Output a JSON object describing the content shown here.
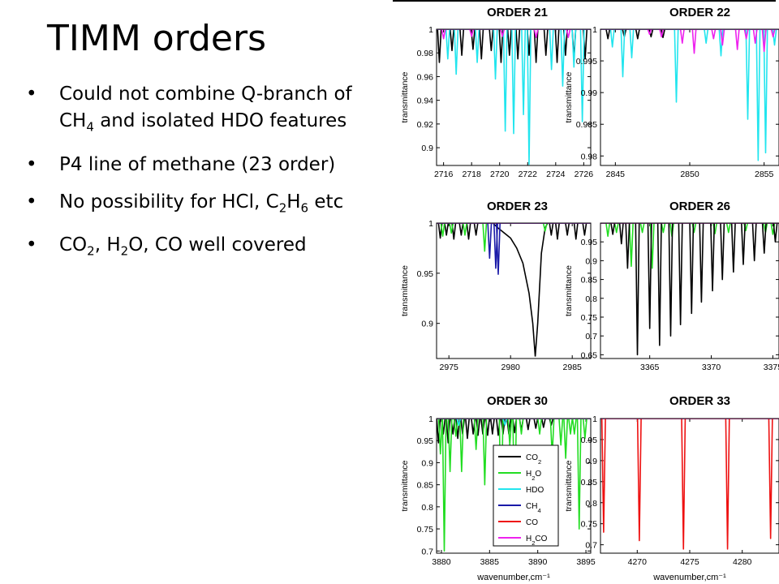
{
  "slide": {
    "title": "TIMM orders",
    "bullets": [
      [
        {
          "t": "Could not combine Q-branch of CH"
        },
        {
          "t": "4",
          "sub": true
        },
        {
          "t": " and isolated HDO features"
        }
      ],
      [
        {
          "t": "P4 line of methane (23 order)"
        }
      ],
      [
        {
          "t": "No possibility for HCl, C"
        },
        {
          "t": "2",
          "sub": true
        },
        {
          "t": "H"
        },
        {
          "t": "6",
          "sub": true
        },
        {
          "t": " etc"
        }
      ],
      [
        {
          "t": "CO"
        },
        {
          "t": "2",
          "sub": true
        },
        {
          "t": ", H"
        },
        {
          "t": "2",
          "sub": true
        },
        {
          "t": "O, CO well covered"
        }
      ]
    ]
  },
  "colors": {
    "CO2": "#000000",
    "H2O": "#22dd22",
    "HDO": "#22e5ee",
    "CH4": "#1a1aa8",
    "CO": "#ee1111",
    "H2CO": "#ee22ee"
  },
  "legend": [
    {
      "key": "CO2",
      "base": "CO",
      "sub": "2",
      "tail": ""
    },
    {
      "key": "H2O",
      "base": "H",
      "sub": "2",
      "tail": "O"
    },
    {
      "key": "HDO",
      "base": "HDO",
      "sub": "",
      "tail": ""
    },
    {
      "key": "CH4",
      "base": "CH",
      "sub": "4",
      "tail": ""
    },
    {
      "key": "CO",
      "base": "CO",
      "sub": "",
      "tail": ""
    },
    {
      "key": "H2CO",
      "base": "H",
      "sub": "2",
      "tail": "CO"
    }
  ],
  "chart_data": [
    {
      "type": "line",
      "title": "ORDER 21",
      "ylabel": "transmittance",
      "xlabel": "",
      "xlim": [
        2715.5,
        2726.5
      ],
      "ylim": [
        0.885,
        1.0
      ],
      "xticks": [
        2716,
        2718,
        2720,
        2722,
        2724,
        2726
      ],
      "yticks": [
        0.9,
        0.92,
        0.94,
        0.96,
        0.98,
        1
      ],
      "series": [
        {
          "key": "CO2",
          "lines": [
            [
              2715.7,
              0.972
            ],
            [
              2716.6,
              0.982
            ],
            [
              2717.3,
              0.978
            ],
            [
              2718.1,
              0.983
            ],
            [
              2718.7,
              0.975
            ],
            [
              2719.4,
              0.982
            ],
            [
              2720.1,
              0.972
            ],
            [
              2720.7,
              0.978
            ],
            [
              2721.3,
              0.975
            ],
            [
              2722.1,
              0.978
            ],
            [
              2722.6,
              0.972
            ],
            [
              2723.3,
              0.978
            ],
            [
              2724.1,
              0.972
            ],
            [
              2724.7,
              0.978
            ],
            [
              2725.3,
              0.975
            ],
            [
              2726.1,
              0.975
            ]
          ]
        },
        {
          "key": "HDO",
          "lines": [
            [
              2716.3,
              0.975
            ],
            [
              2716.9,
              0.962
            ],
            [
              2718.4,
              0.972
            ],
            [
              2719.7,
              0.958
            ],
            [
              2720.4,
              0.914
            ],
            [
              2721.0,
              0.912
            ],
            [
              2721.7,
              0.928
            ],
            [
              2722.1,
              0.886
            ],
            [
              2723.7,
              0.966
            ],
            [
              2724.5,
              0.952
            ],
            [
              2725.3,
              0.968
            ],
            [
              2725.9,
              0.922
            ]
          ]
        },
        {
          "key": "H2CO",
          "lines": [
            [
              2716.0,
              0.992
            ],
            [
              2718.0,
              0.994
            ],
            [
              2720.2,
              0.994
            ],
            [
              2722.6,
              0.993
            ],
            [
              2724.9,
              0.993
            ]
          ]
        }
      ]
    },
    {
      "type": "line",
      "title": "ORDER 22",
      "ylabel": "transmittance",
      "xlabel": "",
      "xlim": [
        2844.0,
        2856.0
      ],
      "ylim": [
        0.9785,
        1.0
      ],
      "xticks": [
        2845,
        2850,
        2855
      ],
      "yticks": [
        0.98,
        0.985,
        0.99,
        0.995,
        1
      ],
      "series": [
        {
          "key": "CO2",
          "lines": [
            [
              2844.5,
              0.9985
            ],
            [
              2845.6,
              0.9988
            ],
            [
              2846.5,
              0.9985
            ],
            [
              2847.4,
              0.9988
            ],
            [
              2848.2,
              0.9987
            ]
          ]
        },
        {
          "key": "HDO",
          "lines": [
            [
              2844.8,
              0.9972
            ],
            [
              2845.5,
              0.9925
            ],
            [
              2846.1,
              0.9955
            ],
            [
              2849.1,
              0.9885
            ],
            [
              2851.1,
              0.9978
            ],
            [
              2852.1,
              0.9958
            ],
            [
              2853.9,
              0.9858
            ],
            [
              2854.6,
              0.9793
            ],
            [
              2855.1,
              0.9805
            ],
            [
              2855.7,
              0.9975
            ]
          ]
        },
        {
          "key": "H2CO",
          "lines": [
            [
              2847.3,
              0.9992
            ],
            [
              2848.1,
              0.9988
            ],
            [
              2849.5,
              0.9978
            ],
            [
              2850.3,
              0.9962
            ],
            [
              2851.6,
              0.9985
            ],
            [
              2852.2,
              0.9975
            ],
            [
              2853.2,
              0.9968
            ],
            [
              2853.8,
              0.9985
            ],
            [
              2854.4,
              0.9978
            ],
            [
              2855.0,
              0.9965
            ],
            [
              2855.6,
              0.9988
            ]
          ]
        }
      ]
    },
    {
      "type": "line",
      "title": "ORDER 23",
      "ylabel": "transmittance",
      "xlabel": "",
      "xlim": [
        2974.0,
        2986.5
      ],
      "ylim": [
        0.865,
        1.0
      ],
      "xticks": [
        2975,
        2980,
        2985
      ],
      "yticks": [
        0.9,
        0.95,
        1
      ],
      "series": [
        {
          "key": "CO2",
          "lines": [
            [
              2974.3,
              0.985
            ],
            [
              2974.8,
              0.988
            ],
            [
              2975.4,
              0.984
            ],
            [
              2976.0,
              0.988
            ],
            [
              2976.6,
              0.984
            ],
            [
              2977.2,
              0.988
            ],
            [
              2983.3,
              0.988
            ],
            [
              2983.8,
              0.984
            ],
            [
              2984.6,
              0.988
            ],
            [
              2985.3,
              0.984
            ],
            [
              2986.0,
              0.988
            ]
          ],
          "curve": [
            [
              2978.6,
              0.9995
            ],
            [
              2979.0,
              0.995
            ],
            [
              2979.5,
              0.99
            ],
            [
              2980.0,
              0.985
            ],
            [
              2980.5,
              0.975
            ],
            [
              2981.0,
              0.96
            ],
            [
              2981.5,
              0.93
            ],
            [
              2981.8,
              0.9
            ],
            [
              2982.0,
              0.867
            ],
            [
              2982.2,
              0.9
            ],
            [
              2982.5,
              0.97
            ],
            [
              2982.8,
              0.995
            ],
            [
              2983.0,
              1.0
            ]
          ]
        },
        {
          "key": "H2O",
          "lines": [
            [
              2974.5,
              0.987
            ],
            [
              2975.2,
              0.99
            ],
            [
              2976.3,
              0.988
            ],
            [
              2977.9,
              0.972
            ],
            [
              2982.8,
              0.992
            ]
          ]
        },
        {
          "key": "CH4",
          "lines": [
            [
              2978.3,
              0.965
            ],
            [
              2978.8,
              0.955
            ],
            [
              2979.0,
              0.949
            ]
          ]
        },
        {
          "key": "H2CO",
          "lines": []
        }
      ]
    },
    {
      "type": "line",
      "title": "ORDER 26",
      "ylabel": "transmittance",
      "xlabel": "",
      "xlim": [
        3361.0,
        3375.5
      ],
      "ylim": [
        0.64,
        1.0
      ],
      "xticks": [
        3365,
        3370,
        3375
      ],
      "yticks": [
        0.65,
        0.7,
        0.75,
        0.8,
        0.85,
        0.9,
        0.95
      ],
      "series": [
        {
          "key": "H2O",
          "lines": [
            [
              3361.6,
              0.965
            ],
            [
              3362.3,
              0.975
            ],
            [
              3363.5,
              0.885
            ],
            [
              3364.4,
              0.975
            ],
            [
              3365.2,
              0.88
            ],
            [
              3366.1,
              0.975
            ],
            [
              3366.8,
              0.965
            ],
            [
              3368.6,
              0.975
            ],
            [
              3370.3,
              0.972
            ],
            [
              3371.4,
              0.975
            ],
            [
              3372.8,
              0.98
            ],
            [
              3374.4,
              0.975
            ],
            [
              3375.0,
              0.97
            ]
          ]
        },
        {
          "key": "CO2",
          "lines": [
            [
              3362.0,
              0.97
            ],
            [
              3362.7,
              0.945
            ],
            [
              3363.2,
              0.88
            ],
            [
              3364.0,
              0.65
            ],
            [
              3365.0,
              0.72
            ],
            [
              3365.8,
              0.675
            ],
            [
              3366.7,
              0.7
            ],
            [
              3367.5,
              0.73
            ],
            [
              3368.4,
              0.76
            ],
            [
              3369.2,
              0.79
            ],
            [
              3370.1,
              0.82
            ],
            [
              3370.9,
              0.85
            ],
            [
              3371.8,
              0.87
            ],
            [
              3372.6,
              0.89
            ],
            [
              3373.5,
              0.9
            ],
            [
              3374.3,
              0.92
            ],
            [
              3375.2,
              0.95
            ]
          ]
        },
        {
          "key": "H2CO",
          "lines": []
        }
      ]
    },
    {
      "type": "line",
      "title": "ORDER 30",
      "ylabel": "transmittance",
      "xlabel": "wavenumber,cm⁻¹",
      "xlim": [
        3879.5,
        3895.5
      ],
      "ylim": [
        0.695,
        1.0
      ],
      "xticks": [
        3880,
        3885,
        3890,
        3895
      ],
      "yticks": [
        0.7,
        0.75,
        0.8,
        0.85,
        0.9,
        0.95,
        1
      ],
      "series": [
        {
          "key": "CO2",
          "lines": [
            [
              3879.7,
              0.945
            ],
            [
              3880.2,
              0.965
            ],
            [
              3880.7,
              0.945
            ],
            [
              3881.2,
              0.965
            ],
            [
              3881.7,
              0.955
            ],
            [
              3882.2,
              0.965
            ],
            [
              3882.7,
              0.955
            ],
            [
              3883.3,
              0.965
            ],
            [
              3883.8,
              0.962
            ],
            [
              3884.3,
              0.965
            ],
            [
              3884.8,
              0.962
            ],
            [
              3885.3,
              0.965
            ],
            [
              3885.9,
              0.962
            ],
            [
              3886.4,
              0.965
            ],
            [
              3887.0,
              0.965
            ],
            [
              3887.6,
              0.968
            ],
            [
              3888.3,
              0.972
            ],
            [
              3889.0,
              0.975
            ],
            [
              3889.8,
              0.978
            ],
            [
              3890.6,
              0.98
            ],
            [
              3891.4,
              0.985
            ]
          ]
        },
        {
          "key": "H2O",
          "lines": [
            [
              3879.9,
              0.92
            ],
            [
              3880.3,
              0.7
            ],
            [
              3880.9,
              0.88
            ],
            [
              3881.5,
              0.96
            ],
            [
              3882.1,
              0.88
            ],
            [
              3883.6,
              0.93
            ],
            [
              3884.5,
              0.85
            ],
            [
              3886.2,
              0.74
            ],
            [
              3887.1,
              0.94
            ],
            [
              3887.6,
              0.79
            ],
            [
              3888.3,
              0.965
            ],
            [
              3890.2,
              0.965
            ],
            [
              3891.5,
              0.915
            ],
            [
              3892.4,
              0.94
            ],
            [
              3892.9,
              0.91
            ],
            [
              3893.4,
              0.965
            ],
            [
              3893.8,
              0.965
            ],
            [
              3894.3,
              0.75
            ],
            [
              3894.9,
              0.955
            ]
          ]
        },
        {
          "key": "HDO",
          "lines": [
            [
              3881.8,
              0.985
            ],
            [
              3886.6,
              0.985
            ]
          ]
        },
        {
          "key": "H2CO",
          "lines": []
        }
      ]
    },
    {
      "type": "line",
      "title": "ORDER 33",
      "ylabel": "transmittance",
      "xlabel": "wavenumber,cm⁻¹",
      "xlim": [
        4266.5,
        4283.5
      ],
      "ylim": [
        0.68,
        1.0
      ],
      "xticks": [
        4270,
        4275,
        4280
      ],
      "yticks": [
        0.7,
        0.75,
        0.8,
        0.85,
        0.9,
        0.95,
        1
      ],
      "series": [
        {
          "key": "CO",
          "lines": [
            [
              4266.8,
              0.73
            ],
            [
              4270.2,
              0.71
            ],
            [
              4274.4,
              0.69
            ],
            [
              4278.6,
              0.69
            ],
            [
              4282.7,
              0.715
            ]
          ]
        },
        {
          "key": "H2CO",
          "lines": []
        }
      ]
    }
  ]
}
